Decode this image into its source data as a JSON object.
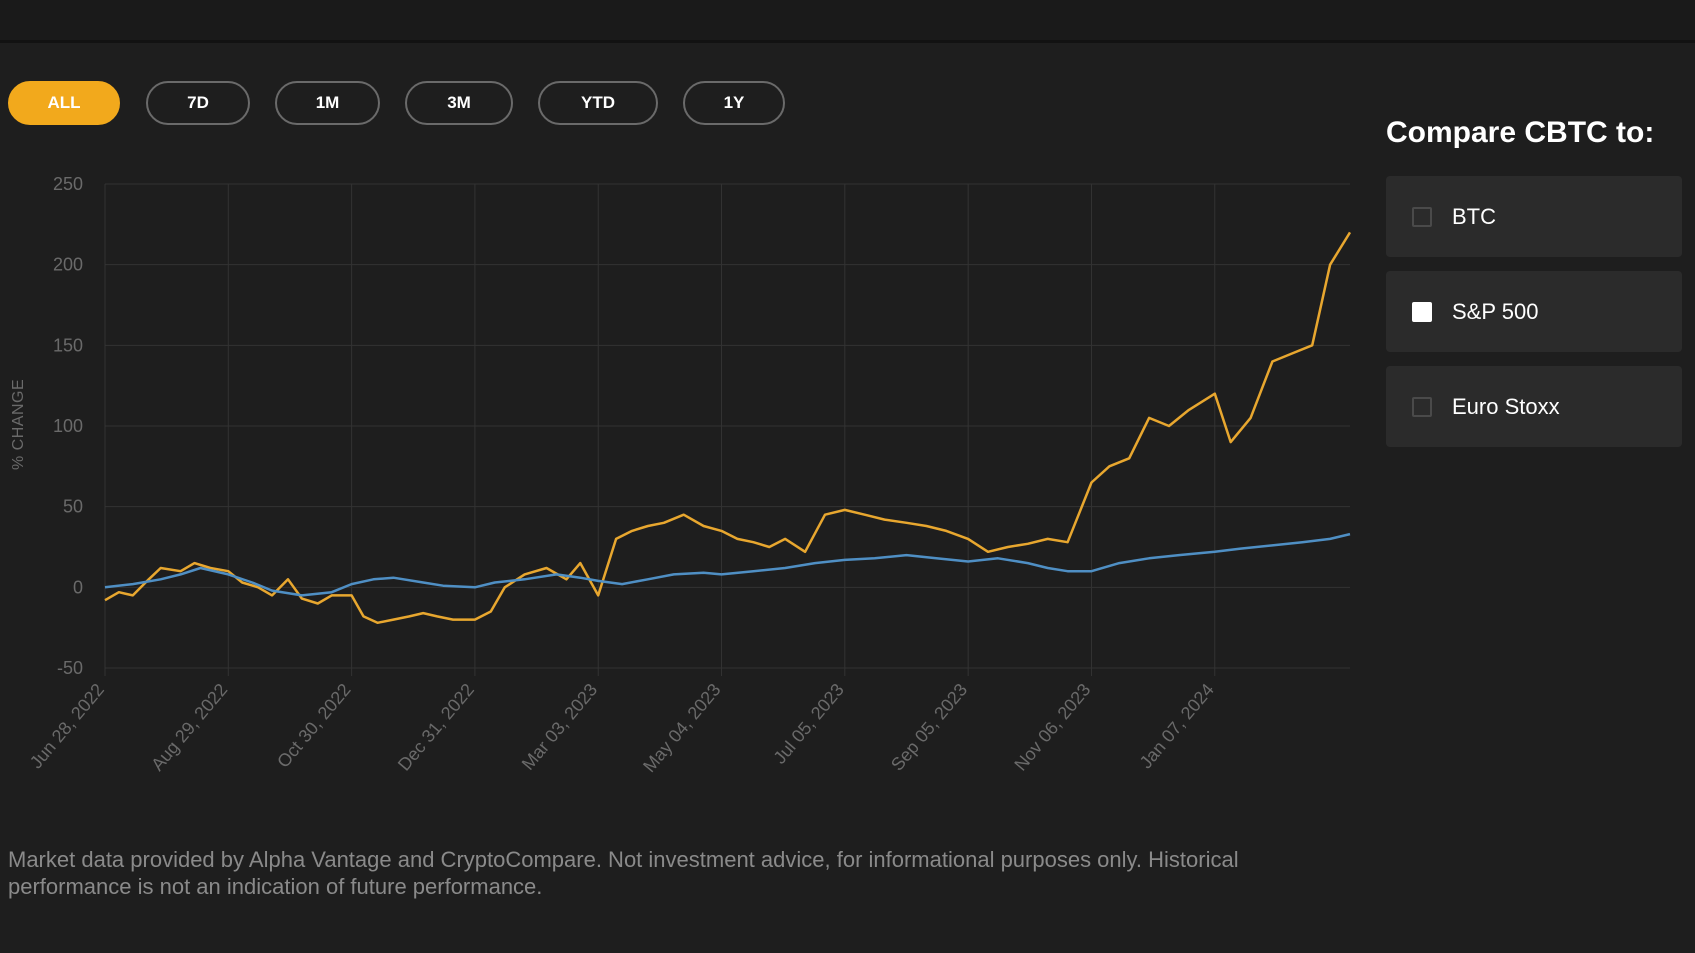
{
  "ranges": [
    {
      "label": "ALL",
      "active": true
    },
    {
      "label": "7D",
      "active": false
    },
    {
      "label": "1M",
      "active": false
    },
    {
      "label": "3M",
      "active": false
    },
    {
      "label": "YTD",
      "active": false
    },
    {
      "label": "1Y",
      "active": false
    }
  ],
  "compare": {
    "title": "Compare CBTC to:",
    "options": [
      {
        "label": "BTC",
        "checked": false
      },
      {
        "label": "S&P 500",
        "checked": true
      },
      {
        "label": "Euro Stoxx",
        "checked": false
      }
    ]
  },
  "disclaimer": "Market data provided by Alpha Vantage and CryptoCompare. Not investment advice, for informational purposes only. Historical performance is not an indication of future performance.",
  "colors": {
    "background": "#1e1e1e",
    "accent": "#f2a91c",
    "cbtc_line": "#e8a72f",
    "sp500_line": "#4f8fc4",
    "grid": "#333333",
    "tick_text": "#6a6a6a"
  },
  "chart_data": {
    "type": "line",
    "ylabel": "% CHANGE",
    "ylim": [
      -50,
      250
    ],
    "yticks": [
      250,
      200,
      150,
      100,
      50,
      0,
      -50
    ],
    "x_range": [
      "2022-06-28",
      "2024-03-15"
    ],
    "xtick_labels": [
      "Jun 28, 2022",
      "Aug 29, 2022",
      "Oct 30, 2022",
      "Dec 31, 2022",
      "Mar 03, 2023",
      "May 04, 2023",
      "Jul 05, 2023",
      "Sep 05, 2023",
      "Nov 06, 2023",
      "Jan 07, 2024"
    ],
    "xtick_dates": [
      "2022-06-28",
      "2022-08-29",
      "2022-10-30",
      "2022-12-31",
      "2023-03-03",
      "2023-05-04",
      "2023-07-05",
      "2023-09-05",
      "2023-11-06",
      "2024-01-07"
    ],
    "grid": true,
    "series": [
      {
        "x": [
          "2022-06-28",
          "2022-07-05",
          "2022-07-12",
          "2022-07-20",
          "2022-07-26",
          "2022-08-05",
          "2022-08-12",
          "2022-08-20",
          "2022-08-29",
          "2022-09-05",
          "2022-09-13",
          "2022-09-20",
          "2022-09-28",
          "2022-10-05",
          "2022-10-13",
          "2022-10-20",
          "2022-10-30",
          "2022-11-05",
          "2022-11-12",
          "2022-11-20",
          "2022-11-28",
          "2022-12-05",
          "2022-12-12",
          "2022-12-20",
          "2022-12-31",
          "2023-01-08",
          "2023-01-15",
          "2023-01-25",
          "2023-02-05",
          "2023-02-15",
          "2023-02-22",
          "2023-03-03",
          "2023-03-12",
          "2023-03-20",
          "2023-03-28",
          "2023-04-05",
          "2023-04-15",
          "2023-04-25",
          "2023-05-04",
          "2023-05-12",
          "2023-05-20",
          "2023-05-28",
          "2023-06-05",
          "2023-06-15",
          "2023-06-25",
          "2023-07-05",
          "2023-07-15",
          "2023-07-25",
          "2023-08-05",
          "2023-08-15",
          "2023-08-25",
          "2023-09-05",
          "2023-09-15",
          "2023-09-25",
          "2023-10-05",
          "2023-10-15",
          "2023-10-25",
          "2023-11-06",
          "2023-11-15",
          "2023-11-25",
          "2023-12-05",
          "2023-12-15",
          "2023-12-25",
          "2024-01-07",
          "2024-01-15",
          "2024-01-25",
          "2024-02-05",
          "2024-02-15",
          "2024-02-25",
          "2024-03-05",
          "2024-03-15"
        ],
        "values": [
          -8,
          -3,
          -5,
          5,
          12,
          10,
          15,
          12,
          10,
          3,
          0,
          -5,
          5,
          -7,
          -10,
          -5,
          -5,
          -18,
          -22,
          -20,
          -18,
          -16,
          -18,
          -20,
          -20,
          -15,
          0,
          8,
          12,
          5,
          15,
          -5,
          30,
          35,
          38,
          40,
          45,
          38,
          35,
          30,
          28,
          25,
          30,
          22,
          45,
          48,
          45,
          42,
          40,
          38,
          35,
          30,
          22,
          25,
          27,
          30,
          28,
          65,
          75,
          80,
          105,
          100,
          110,
          120,
          90,
          105,
          140,
          145,
          150,
          200,
          220
        ]
      },
      {
        "x": [
          "2022-06-28",
          "2022-07-12",
          "2022-07-26",
          "2022-08-05",
          "2022-08-15",
          "2022-08-29",
          "2022-09-10",
          "2022-09-20",
          "2022-10-05",
          "2022-10-20",
          "2022-10-30",
          "2022-11-10",
          "2022-11-20",
          "2022-12-05",
          "2022-12-15",
          "2022-12-31",
          "2023-01-10",
          "2023-01-25",
          "2023-02-10",
          "2023-02-22",
          "2023-03-03",
          "2023-03-15",
          "2023-03-28",
          "2023-04-10",
          "2023-04-25",
          "2023-05-04",
          "2023-05-20",
          "2023-06-05",
          "2023-06-20",
          "2023-07-05",
          "2023-07-20",
          "2023-08-05",
          "2023-08-20",
          "2023-09-05",
          "2023-09-20",
          "2023-10-05",
          "2023-10-15",
          "2023-10-25",
          "2023-11-06",
          "2023-11-20",
          "2023-12-05",
          "2023-12-20",
          "2024-01-07",
          "2024-01-20",
          "2024-02-05",
          "2024-02-20",
          "2024-03-05",
          "2024-03-15"
        ],
        "values": [
          0,
          2,
          5,
          8,
          12,
          8,
          3,
          -2,
          -5,
          -3,
          2,
          5,
          6,
          3,
          1,
          0,
          3,
          5,
          8,
          6,
          4,
          2,
          5,
          8,
          9,
          8,
          10,
          12,
          15,
          17,
          18,
          20,
          18,
          16,
          18,
          15,
          12,
          10,
          10,
          15,
          18,
          20,
          22,
          24,
          26,
          28,
          30,
          33
        ]
      }
    ]
  }
}
